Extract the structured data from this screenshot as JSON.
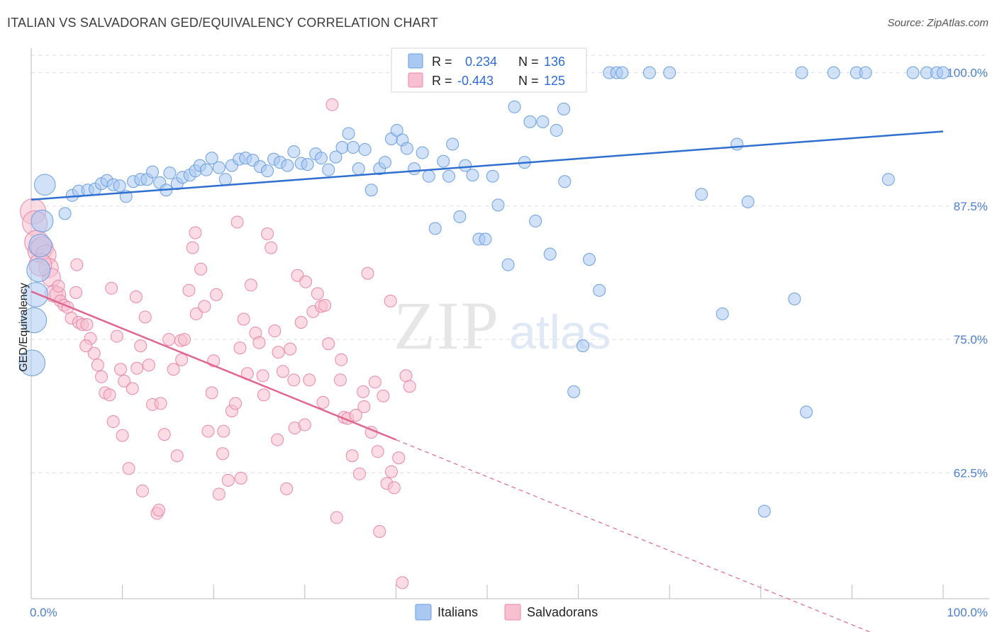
{
  "title": "ITALIAN VS SALVADORAN GED/EQUIVALENCY CORRELATION CHART",
  "source": "Source: ZipAtlas.com",
  "watermark": {
    "zip": "ZIP",
    "atlas": "atlas"
  },
  "colors": {
    "italians_fill": "#a9c8f2",
    "italians_stroke": "#6b9fe0",
    "italians_line": "#2f6fd0",
    "salvadorans_fill": "#f7bfd0",
    "salvadorans_stroke": "#e987a8",
    "salvadorans_line": "#e06691",
    "tick_text": "#4a7fd0",
    "grid": "#dddddd"
  },
  "legend": {
    "r_label": "R =",
    "n_label": "N =",
    "italians": {
      "r": "0.234",
      "n": "136"
    },
    "salvadorans": {
      "r": "-0.443",
      "n": "125"
    }
  },
  "chart_data": {
    "type": "scatter",
    "title": "ITALIAN VS SALVADORAN GED/EQUIVALENCY CORRELATION CHART",
    "xlabel": "",
    "ylabel": "GED/Equivalency",
    "xlim": [
      0,
      100
    ],
    "ylim": [
      50.7,
      102.3
    ],
    "x_tick_labels": [
      "0.0%",
      "100.0%"
    ],
    "y_ticks": [
      62.5,
      75.0,
      87.5,
      100.0
    ],
    "y_tick_labels": [
      "62.5%",
      "75.0%",
      "87.5%",
      "100.0%"
    ],
    "grid": "horizontal dashed",
    "legend_position": "top-center",
    "series": [
      {
        "name": "Italians",
        "r": 0.234,
        "n": 136,
        "trend": {
          "x0": 0,
          "y0": 88.1,
          "x1": 100,
          "y1": 94.5
        },
        "points": [
          [
            1.5,
            89.5
          ],
          [
            1.2,
            86.1
          ],
          [
            1.0,
            83.8
          ],
          [
            0.8,
            81.5
          ],
          [
            0.5,
            79.2
          ],
          [
            0.3,
            76.8
          ],
          [
            0.1,
            72.8
          ],
          [
            3.7,
            86.8
          ],
          [
            4.5,
            88.5
          ],
          [
            5.2,
            88.9
          ],
          [
            6.2,
            89.0
          ],
          [
            7.0,
            89.1
          ],
          [
            7.7,
            89.6
          ],
          [
            8.3,
            89.9
          ],
          [
            9.0,
            89.5
          ],
          [
            9.7,
            89.4
          ],
          [
            10.4,
            88.4
          ],
          [
            11.2,
            89.8
          ],
          [
            12.0,
            90.0
          ],
          [
            12.7,
            90.0
          ],
          [
            13.3,
            90.7
          ],
          [
            14.1,
            89.7
          ],
          [
            14.8,
            89.0
          ],
          [
            15.2,
            90.6
          ],
          [
            16.0,
            89.6
          ],
          [
            16.6,
            90.2
          ],
          [
            17.4,
            90.4
          ],
          [
            18.0,
            90.8
          ],
          [
            18.5,
            91.3
          ],
          [
            19.2,
            90.9
          ],
          [
            19.8,
            92.0
          ],
          [
            20.6,
            91.1
          ],
          [
            21.3,
            90.0
          ],
          [
            22.0,
            91.3
          ],
          [
            22.8,
            91.9
          ],
          [
            23.5,
            92.0
          ],
          [
            24.3,
            91.8
          ],
          [
            25.1,
            91.2
          ],
          [
            25.9,
            90.8
          ],
          [
            26.6,
            91.9
          ],
          [
            27.3,
            91.6
          ],
          [
            28.1,
            91.3
          ],
          [
            28.8,
            92.6
          ],
          [
            29.6,
            91.5
          ],
          [
            30.3,
            91.4
          ],
          [
            31.2,
            92.4
          ],
          [
            31.8,
            92.0
          ],
          [
            32.6,
            90.9
          ],
          [
            33.4,
            92.1
          ],
          [
            34.1,
            93.0
          ],
          [
            34.8,
            94.3
          ],
          [
            35.3,
            93.0
          ],
          [
            35.9,
            91.0
          ],
          [
            36.6,
            92.8
          ],
          [
            37.3,
            89.0
          ],
          [
            38.2,
            91.0
          ],
          [
            38.8,
            91.6
          ],
          [
            39.5,
            93.8
          ],
          [
            40.1,
            94.6
          ],
          [
            40.7,
            93.7
          ],
          [
            41.2,
            92.9
          ],
          [
            42.0,
            91.0
          ],
          [
            42.9,
            92.5
          ],
          [
            43.6,
            90.3
          ],
          [
            44.3,
            85.4
          ],
          [
            45.2,
            91.7
          ],
          [
            45.8,
            90.3
          ],
          [
            46.2,
            93.3
          ],
          [
            47.0,
            86.5
          ],
          [
            47.6,
            91.3
          ],
          [
            48.4,
            90.4
          ],
          [
            49.1,
            84.4
          ],
          [
            49.8,
            84.4
          ],
          [
            50.6,
            90.3
          ],
          [
            51.2,
            87.6
          ],
          [
            52.3,
            82.0
          ],
          [
            53.0,
            96.8
          ],
          [
            53.5,
            99.9
          ],
          [
            54.1,
            91.6
          ],
          [
            54.7,
            95.4
          ],
          [
            55.3,
            86.1
          ],
          [
            55.9,
            100.0
          ],
          [
            56.1,
            95.4
          ],
          [
            56.9,
            83.0
          ],
          [
            57.6,
            94.6
          ],
          [
            58.4,
            96.6
          ],
          [
            59.1,
            100.0
          ],
          [
            58.5,
            89.8
          ],
          [
            59.5,
            70.1
          ],
          [
            60.5,
            74.4
          ],
          [
            61.2,
            82.5
          ],
          [
            62.3,
            79.6
          ],
          [
            63.4,
            100.0
          ],
          [
            64.2,
            100.0
          ],
          [
            64.8,
            100.0
          ],
          [
            67.8,
            100.0
          ],
          [
            70.0,
            100.0
          ],
          [
            73.5,
            88.6
          ],
          [
            75.8,
            77.4
          ],
          [
            77.4,
            93.3
          ],
          [
            78.6,
            87.9
          ],
          [
            80.4,
            58.9
          ],
          [
            83.7,
            78.8
          ],
          [
            84.5,
            100.0
          ],
          [
            85.0,
            68.2
          ],
          [
            88.0,
            100.0
          ],
          [
            90.5,
            100.0
          ],
          [
            91.5,
            100.0
          ],
          [
            94.0,
            90.0
          ],
          [
            96.7,
            100.0
          ],
          [
            98.2,
            100.0
          ],
          [
            99.3,
            100.0
          ],
          [
            100.0,
            100.0
          ]
        ]
      },
      {
        "name": "Salvadorans",
        "r": -0.443,
        "n": 125,
        "trend": {
          "x0": 0,
          "y0": 79.5,
          "x1": 40.0,
          "y1": 65.6
        },
        "trend_dashed": {
          "x0": 40.0,
          "y0": 65.6,
          "x1": 100,
          "y1": 44.8
        },
        "points": [
          [
            0.2,
            87.0
          ],
          [
            0.4,
            85.9
          ],
          [
            0.6,
            84.1
          ],
          [
            0.9,
            83.3
          ],
          [
            1.2,
            83.6
          ],
          [
            1.6,
            82.9
          ],
          [
            1.9,
            81.7
          ],
          [
            2.2,
            80.8
          ],
          [
            2.5,
            79.3
          ],
          [
            2.9,
            79.2
          ],
          [
            3.2,
            78.6
          ],
          [
            3.6,
            78.2
          ],
          [
            4.0,
            78.0
          ],
          [
            4.4,
            77.0
          ],
          [
            4.9,
            79.4
          ],
          [
            5.2,
            76.6
          ],
          [
            5.6,
            76.4
          ],
          [
            6.1,
            76.4
          ],
          [
            6.5,
            75.1
          ],
          [
            6.9,
            73.7
          ],
          [
            7.3,
            72.6
          ],
          [
            7.7,
            71.5
          ],
          [
            8.1,
            70.0
          ],
          [
            8.6,
            69.8
          ],
          [
            9.0,
            67.3
          ],
          [
            9.4,
            75.3
          ],
          [
            9.8,
            72.2
          ],
          [
            10.2,
            71.1
          ],
          [
            10.7,
            62.9
          ],
          [
            11.1,
            70.4
          ],
          [
            11.6,
            72.3
          ],
          [
            12.0,
            74.4
          ],
          [
            12.5,
            77.1
          ],
          [
            12.9,
            72.6
          ],
          [
            13.3,
            68.9
          ],
          [
            13.8,
            58.7
          ],
          [
            14.2,
            69.0
          ],
          [
            14.6,
            66.1
          ],
          [
            15.1,
            75.0
          ],
          [
            15.6,
            72.2
          ],
          [
            16.0,
            64.1
          ],
          [
            16.4,
            74.9
          ],
          [
            16.8,
            75.0
          ],
          [
            17.3,
            79.6
          ],
          [
            17.7,
            83.6
          ],
          [
            18.1,
            77.4
          ],
          [
            18.6,
            81.6
          ],
          [
            19.0,
            78.1
          ],
          [
            19.4,
            66.4
          ],
          [
            19.8,
            70.0
          ],
          [
            20.3,
            79.2
          ],
          [
            20.6,
            60.5
          ],
          [
            21.1,
            66.4
          ],
          [
            21.6,
            61.8
          ],
          [
            22.0,
            68.3
          ],
          [
            22.4,
            69.0
          ],
          [
            22.9,
            74.2
          ],
          [
            23.3,
            76.9
          ],
          [
            23.7,
            71.8
          ],
          [
            24.1,
            80.1
          ],
          [
            24.6,
            75.6
          ],
          [
            25.0,
            74.7
          ],
          [
            25.4,
            71.6
          ],
          [
            25.9,
            84.9
          ],
          [
            26.3,
            83.6
          ],
          [
            26.7,
            75.8
          ],
          [
            27.1,
            73.8
          ],
          [
            27.6,
            72.0
          ],
          [
            28.0,
            61.0
          ],
          [
            28.4,
            74.1
          ],
          [
            28.8,
            71.2
          ],
          [
            29.2,
            81.0
          ],
          [
            29.6,
            76.6
          ],
          [
            30.1,
            80.4
          ],
          [
            30.5,
            71.2
          ],
          [
            30.9,
            77.6
          ],
          [
            31.4,
            79.3
          ],
          [
            31.8,
            78.1
          ],
          [
            32.2,
            78.2
          ],
          [
            32.6,
            74.6
          ],
          [
            33.0,
            97.0
          ],
          [
            33.5,
            58.3
          ],
          [
            33.9,
            71.2
          ],
          [
            34.3,
            67.7
          ],
          [
            34.7,
            67.6
          ],
          [
            35.2,
            64.1
          ],
          [
            35.6,
            67.9
          ],
          [
            36.0,
            62.4
          ],
          [
            36.4,
            70.1
          ],
          [
            36.9,
            81.2
          ],
          [
            37.3,
            66.3
          ],
          [
            37.7,
            71.0
          ],
          [
            38.2,
            57.0
          ],
          [
            38.6,
            69.7
          ],
          [
            39.0,
            61.5
          ],
          [
            39.4,
            78.6
          ],
          [
            39.8,
            61.1
          ],
          [
            40.3,
            63.9
          ],
          [
            40.7,
            52.2
          ],
          [
            41.1,
            71.6
          ],
          [
            41.5,
            70.6
          ],
          [
            5.0,
            82.0
          ],
          [
            3.0,
            80.0
          ],
          [
            10.0,
            66.0
          ],
          [
            12.2,
            60.8
          ],
          [
            14.0,
            59.0
          ],
          [
            16.5,
            73.1
          ],
          [
            21.0,
            64.3
          ],
          [
            23.0,
            62.0
          ],
          [
            25.5,
            69.8
          ],
          [
            27.0,
            65.6
          ],
          [
            28.9,
            66.7
          ],
          [
            30.0,
            67.0
          ],
          [
            32.0,
            69.1
          ],
          [
            34.0,
            73.1
          ],
          [
            36.5,
            68.7
          ],
          [
            38.0,
            64.5
          ],
          [
            39.5,
            62.6
          ],
          [
            18.0,
            85.0
          ],
          [
            20.0,
            73.0
          ],
          [
            22.6,
            86.0
          ],
          [
            6.0,
            74.4
          ],
          [
            8.8,
            79.8
          ],
          [
            11.5,
            79.0
          ],
          [
            1.0,
            82.0
          ]
        ]
      }
    ]
  },
  "bottom_legend": {
    "italians": "Italians",
    "salvadorans": "Salvadorans"
  }
}
